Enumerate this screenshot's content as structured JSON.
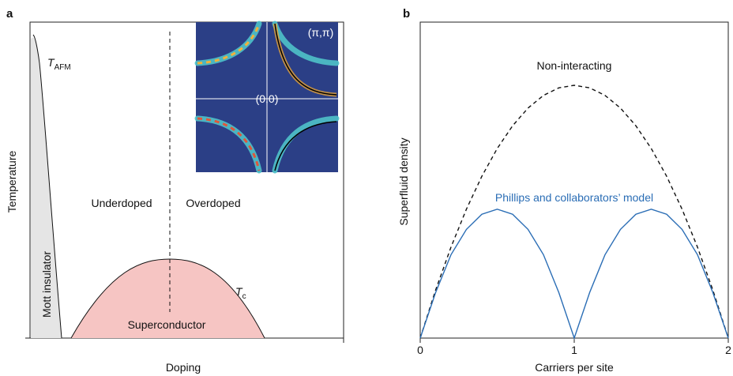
{
  "panel_a": {
    "label": "a",
    "y_label": "Temperature",
    "x_label": "Doping",
    "t_afm": {
      "symbol": "T",
      "subscript": "AFM"
    },
    "t_c": {
      "symbol": "T",
      "subscript": "c"
    },
    "regions": {
      "mott": "Mott insulator",
      "underdoped": "Underdoped",
      "overdoped": "Overdoped",
      "superconductor": "Superconductor"
    },
    "inset": {
      "corner": "(π,π)",
      "center": "(0,0)"
    }
  },
  "chart_data": {
    "type": "line",
    "label": "b",
    "y_label": "Superfluid density",
    "x_label": "Carriers per site",
    "x": [
      0,
      0.1,
      0.2,
      0.3,
      0.4,
      0.5,
      0.6,
      0.7,
      0.8,
      0.9,
      1,
      1.1,
      1.2,
      1.3,
      1.4,
      1.5,
      1.6,
      1.7,
      1.8,
      1.9,
      2
    ],
    "xlim": [
      0,
      2
    ],
    "xticks": [
      0,
      1,
      2
    ],
    "ylim": [
      0,
      1.25
    ],
    "series": [
      {
        "name": "Non-interacting",
        "color": "#111111",
        "dash": true,
        "values": [
          0,
          0.19,
          0.36,
          0.51,
          0.64,
          0.75,
          0.84,
          0.91,
          0.96,
          0.99,
          1,
          0.99,
          0.96,
          0.91,
          0.84,
          0.75,
          0.64,
          0.51,
          0.36,
          0.19,
          0
        ]
      },
      {
        "name": "Phillips and collaborators’ model",
        "color": "#2a6db5",
        "dash": false,
        "values": [
          0,
          0.18,
          0.33,
          0.43,
          0.49,
          0.51,
          0.49,
          0.43,
          0.33,
          0.18,
          0,
          0.18,
          0.33,
          0.43,
          0.49,
          0.51,
          0.49,
          0.43,
          0.33,
          0.18,
          0
        ]
      }
    ]
  }
}
